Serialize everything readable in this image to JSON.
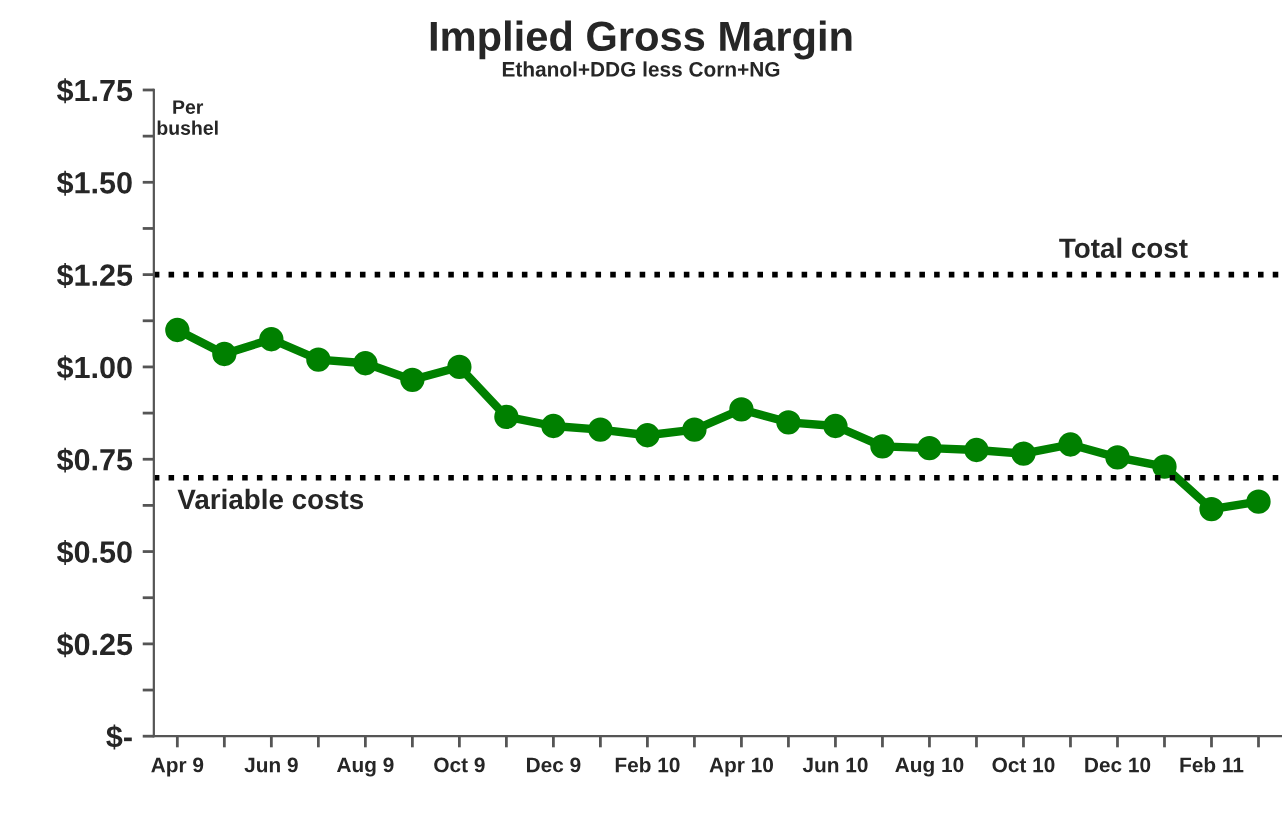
{
  "chart_data": {
    "type": "line",
    "title": "Implied Gross Margin",
    "subtitle": "Ethanol+DDG less Corn+NG",
    "categories": [
      "Apr 9",
      null,
      "Jun 9",
      null,
      "Aug 9",
      null,
      "Oct 9",
      null,
      "Dec 9",
      null,
      "Feb 10",
      null,
      "Apr 10",
      null,
      "Jun 10",
      null,
      "Aug 10",
      null,
      "Oct 10",
      null,
      "Dec 10",
      null,
      "Feb 11",
      null
    ],
    "series": [
      {
        "color": "#008000",
        "values": [
          1.1,
          1.035,
          1.075,
          1.02,
          1.01,
          0.965,
          1.0,
          0.865,
          0.84,
          0.83,
          0.815,
          0.83,
          0.885,
          0.85,
          0.84,
          0.785,
          0.78,
          0.775,
          0.765,
          0.79,
          0.755,
          0.73,
          0.615,
          0.635
        ]
      }
    ],
    "ylim": [
      0,
      1.75
    ],
    "yticks": [
      {
        "value": 0,
        "label": "$-"
      },
      {
        "value": 0.125,
        "label": null
      },
      {
        "value": 0.25,
        "label": "$0.25"
      },
      {
        "value": 0.375,
        "label": null
      },
      {
        "value": 0.5,
        "label": "$0.50"
      },
      {
        "value": 0.625,
        "label": null
      },
      {
        "value": 0.75,
        "label": "$0.75"
      },
      {
        "value": 0.875,
        "label": null
      },
      {
        "value": 1.0,
        "label": "$1.00"
      },
      {
        "value": 1.125,
        "label": null
      },
      {
        "value": 1.25,
        "label": "$1.25"
      },
      {
        "value": 1.375,
        "label": null
      },
      {
        "value": 1.5,
        "label": "$1.50"
      },
      {
        "value": 1.625,
        "label": null
      },
      {
        "value": 1.75,
        "label": "$1.75"
      }
    ],
    "ref_lines": [
      {
        "axis": "y",
        "value": 1.25,
        "label": "Total cost",
        "color": "#000000",
        "line_style": "dotted"
      },
      {
        "axis": "y",
        "value": 0.7,
        "label": "Variable costs",
        "color": "#000000",
        "line_style": "dotted"
      }
    ],
    "annotations": [
      "Per\nbushel"
    ],
    "marker": "circle",
    "line_style": "solid",
    "grid": false,
    "legend": false
  }
}
